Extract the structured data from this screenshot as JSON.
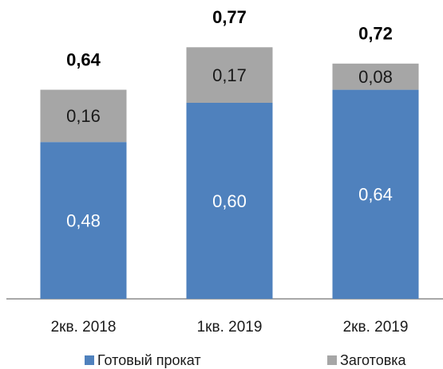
{
  "chart_data": {
    "type": "stacked_bar",
    "categories": [
      "2кв. 2018",
      "1кв. 2019",
      "2кв. 2019"
    ],
    "series": [
      {
        "name": "Готовый прокат",
        "color": "#4f81bd",
        "values": [
          0.48,
          0.6,
          0.64
        ],
        "value_labels": [
          "0,48",
          "0,60",
          "0,64"
        ]
      },
      {
        "name": "Заготовка",
        "color": "#a6a6a6",
        "values": [
          0.16,
          0.17,
          0.08
        ],
        "value_labels": [
          "0,16",
          "0,17",
          "0,08"
        ]
      }
    ],
    "totals": [
      0.64,
      0.77,
      0.72
    ],
    "total_labels": [
      "0,64",
      "0,77",
      "0,72"
    ],
    "ylim": [
      0,
      0.9
    ]
  }
}
